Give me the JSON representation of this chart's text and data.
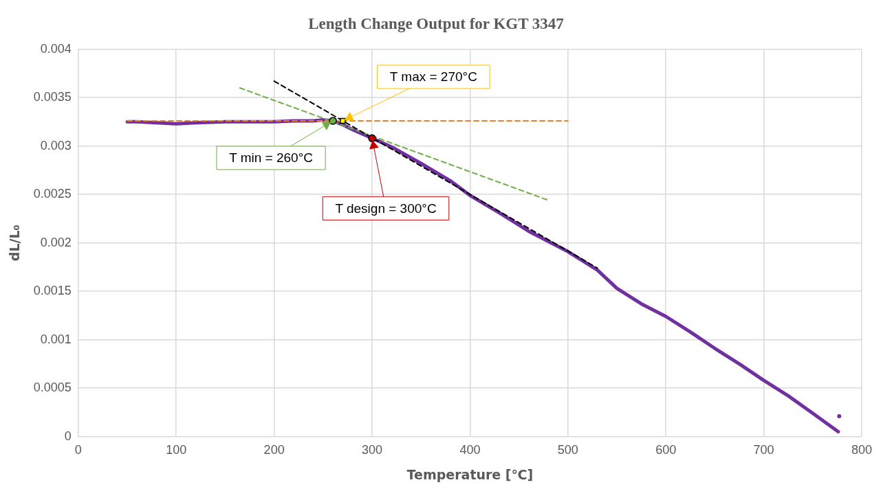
{
  "chart_data": {
    "type": "line",
    "title": "Length Change Output for KGT 3347",
    "xlabel": "Temperature [℃]",
    "ylabel": "dL/L₀",
    "xlim": [
      0,
      800
    ],
    "xticks": [
      0,
      100,
      200,
      300,
      400,
      500,
      600,
      700,
      800
    ],
    "ylim": [
      0,
      0.004
    ],
    "yticks": [
      0,
      0.0005,
      0.001,
      0.0015,
      0.002,
      0.0025,
      0.003,
      0.0035,
      0.004
    ],
    "grid": true,
    "legend": false,
    "series": [
      {
        "type": "line",
        "color": "#7030a0",
        "marker": "none",
        "line_style": "solid",
        "x": [
          50,
          60,
          80,
          100,
          120,
          150,
          180,
          200,
          220,
          240,
          250,
          260,
          270,
          280,
          300,
          320,
          350,
          380,
          400,
          430,
          460,
          500,
          530,
          550,
          575,
          600,
          625,
          650,
          675,
          700,
          725,
          750,
          765,
          776
        ],
        "values": [
          0.00325,
          0.00325,
          0.00324,
          0.00323,
          0.00324,
          0.00325,
          0.00325,
          0.00325,
          0.00326,
          0.00326,
          0.00327,
          0.00326,
          0.00322,
          0.00317,
          0.00308,
          0.00299,
          0.00282,
          0.00264,
          0.00249,
          0.00231,
          0.00212,
          0.00191,
          0.00172,
          0.00153,
          0.00137,
          0.00124,
          0.00108,
          0.00091,
          0.00075,
          0.00058,
          0.00042,
          0.00024,
          0.00013,
          5e-05
        ]
      },
      {
        "type": "scatter",
        "color": "#7030a0",
        "marker": "circle",
        "x": [
          777
        ],
        "values": [
          0.00021
        ]
      },
      {
        "type": "line",
        "color": "#ed7d31",
        "marker": "none",
        "line_style": "dashed",
        "x": [
          50,
          500
        ],
        "values": [
          0.00326,
          0.00326
        ]
      },
      {
        "type": "line",
        "color": "#70ad47",
        "marker": "none",
        "line_style": "dashed",
        "x": [
          165,
          480
        ],
        "values": [
          0.0036,
          0.00244
        ]
      },
      {
        "type": "line",
        "color": "#000000",
        "marker": "none",
        "line_style": "dashed",
        "x": [
          200,
          530
        ],
        "values": [
          0.00367,
          0.00174
        ]
      },
      {
        "type": "scatter",
        "color": "#70ad47",
        "marker": "circle",
        "x": [
          260
        ],
        "values": [
          0.00326
        ]
      },
      {
        "type": "scatter",
        "color": "#ffff00",
        "marker": "square",
        "x": [
          270
        ],
        "values": [
          0.00326
        ]
      },
      {
        "type": "scatter",
        "color": "#c00000",
        "marker": "circle",
        "x": [
          300
        ],
        "values": [
          0.00308
        ]
      }
    ],
    "annotations": [
      {
        "text": "T min = 260°C",
        "x": 260,
        "y": 0.00326
      },
      {
        "text": "T max = 270°C",
        "x": 270,
        "y": 0.00326
      },
      {
        "text": "T design = 300°C",
        "x": 300,
        "y": 0.00308
      }
    ]
  }
}
